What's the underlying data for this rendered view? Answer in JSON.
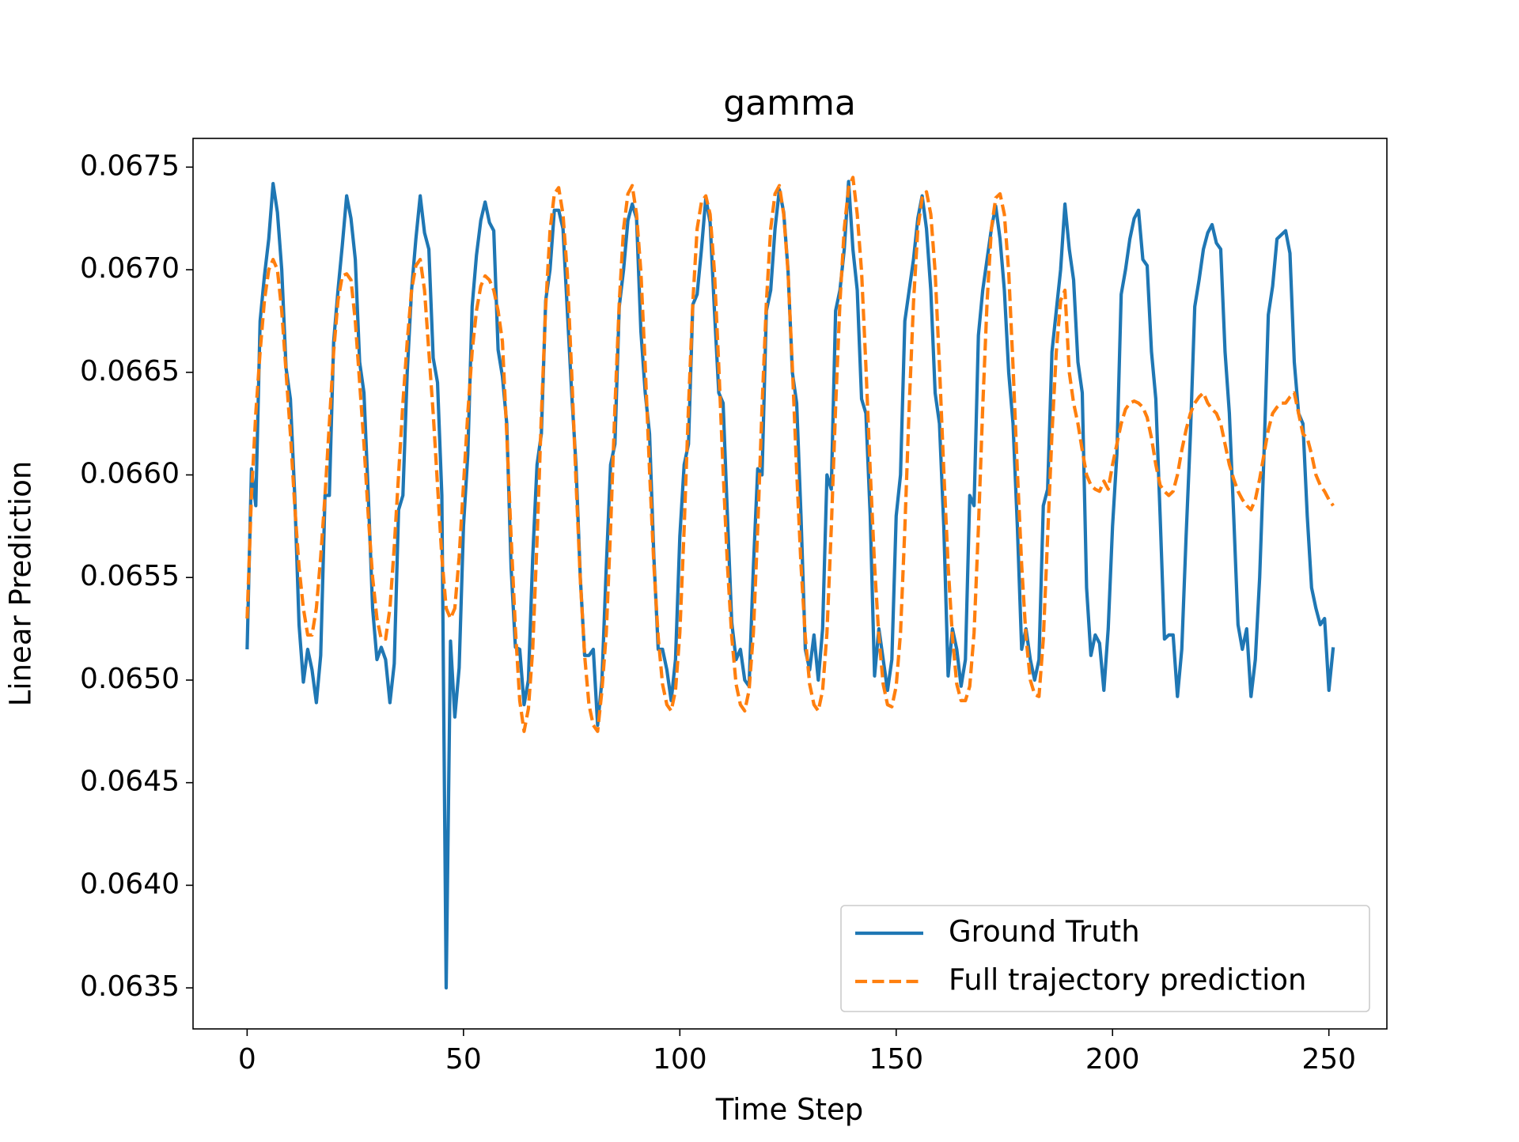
{
  "chart_data": {
    "type": "line",
    "title": "gamma",
    "x_label": "Time Step",
    "y_label": "Linear Prediction",
    "x": [
      0,
      1,
      2,
      3,
      4,
      5,
      6,
      7,
      8,
      9,
      10,
      11,
      12,
      13,
      14,
      15,
      16,
      17,
      18,
      19,
      20,
      21,
      22,
      23,
      24,
      25,
      26,
      27,
      28,
      29,
      30,
      31,
      32,
      33,
      34,
      35,
      36,
      37,
      38,
      39,
      40,
      41,
      42,
      43,
      44,
      45,
      46,
      47,
      48,
      49,
      50,
      51,
      52,
      53,
      54,
      55,
      56,
      57,
      58,
      59,
      60,
      61,
      62,
      63,
      64,
      65,
      66,
      67,
      68,
      69,
      70,
      71,
      72,
      73,
      74,
      75,
      76,
      77,
      78,
      79,
      80,
      81,
      82,
      83,
      84,
      85,
      86,
      87,
      88,
      89,
      90,
      91,
      92,
      93,
      94,
      95,
      96,
      97,
      98,
      99,
      100,
      101,
      102,
      103,
      104,
      105,
      106,
      107,
      108,
      109,
      110,
      111,
      112,
      113,
      114,
      115,
      116,
      117,
      118,
      119,
      120,
      121,
      122,
      123,
      124,
      125,
      126,
      127,
      128,
      129,
      130,
      131,
      132,
      133,
      134,
      135,
      136,
      137,
      138,
      139,
      140,
      141,
      142,
      143,
      144,
      145,
      146,
      147,
      148,
      149,
      150,
      151,
      152,
      153,
      154,
      155,
      156,
      157,
      158,
      159,
      160,
      161,
      162,
      163,
      164,
      165,
      166,
      167,
      168,
      169,
      170,
      171,
      172,
      173,
      174,
      175,
      176,
      177,
      178,
      179,
      180,
      181,
      182,
      183,
      184,
      185,
      186,
      187,
      188,
      189,
      190,
      191,
      192,
      193,
      194,
      195,
      196,
      197,
      198,
      199,
      200,
      201,
      202,
      203,
      204,
      205,
      206,
      207,
      208,
      209,
      210,
      211,
      212,
      213,
      214,
      215,
      216,
      217,
      218,
      219,
      220,
      221,
      222,
      223,
      224,
      225,
      226,
      227,
      228,
      229,
      230,
      231,
      232,
      233,
      234,
      235,
      236,
      237,
      238,
      239,
      240,
      241,
      242,
      243,
      244,
      245,
      246,
      247,
      248,
      249,
      250,
      251
    ],
    "series": [
      {
        "name": "Ground Truth",
        "color": "#1f77b4",
        "dashed": false,
        "values": [
          0.06515,
          0.06603,
          0.06585,
          0.06675,
          0.06697,
          0.06715,
          0.06742,
          0.06728,
          0.067,
          0.06652,
          0.06637,
          0.0659,
          0.06527,
          0.06499,
          0.06515,
          0.06505,
          0.06489,
          0.06512,
          0.0659,
          0.0659,
          0.06665,
          0.0669,
          0.06712,
          0.06736,
          0.06725,
          0.06705,
          0.06655,
          0.0664,
          0.0659,
          0.06535,
          0.0651,
          0.06516,
          0.0651,
          0.06489,
          0.06508,
          0.06583,
          0.0659,
          0.0665,
          0.0669,
          0.06715,
          0.06736,
          0.06718,
          0.0671,
          0.06657,
          0.06645,
          0.0659,
          0.0635,
          0.06519,
          0.06482,
          0.06506,
          0.06575,
          0.0661,
          0.06682,
          0.06707,
          0.06724,
          0.06733,
          0.06723,
          0.06719,
          0.06661,
          0.06648,
          0.06625,
          0.06555,
          0.06516,
          0.06515,
          0.06488,
          0.065,
          0.0656,
          0.06605,
          0.0662,
          0.06685,
          0.067,
          0.06729,
          0.06729,
          0.0672,
          0.0668,
          0.0664,
          0.06605,
          0.0655,
          0.06512,
          0.06512,
          0.06515,
          0.06478,
          0.065,
          0.06555,
          0.06605,
          0.06615,
          0.06682,
          0.067,
          0.06724,
          0.06732,
          0.06725,
          0.0667,
          0.0664,
          0.0662,
          0.0656,
          0.06515,
          0.06515,
          0.06505,
          0.0649,
          0.0651,
          0.0657,
          0.06605,
          0.06615,
          0.06683,
          0.06688,
          0.0671,
          0.06735,
          0.06723,
          0.0668,
          0.0664,
          0.06635,
          0.0658,
          0.06528,
          0.0651,
          0.06515,
          0.065,
          0.06497,
          0.06555,
          0.06603,
          0.066,
          0.0668,
          0.0669,
          0.0672,
          0.06739,
          0.06728,
          0.067,
          0.0665,
          0.06635,
          0.0658,
          0.06515,
          0.06505,
          0.06522,
          0.065,
          0.06525,
          0.066,
          0.06593,
          0.0668,
          0.0669,
          0.0671,
          0.06743,
          0.0671,
          0.0669,
          0.06637,
          0.0663,
          0.0658,
          0.06502,
          0.06525,
          0.0651,
          0.06495,
          0.0651,
          0.0658,
          0.066,
          0.06675,
          0.0669,
          0.06705,
          0.06725,
          0.06736,
          0.0672,
          0.0669,
          0.0664,
          0.06625,
          0.06575,
          0.06502,
          0.06525,
          0.06515,
          0.06497,
          0.0651,
          0.0659,
          0.06585,
          0.06668,
          0.0669,
          0.06705,
          0.0672,
          0.06731,
          0.06715,
          0.0669,
          0.0665,
          0.06625,
          0.06575,
          0.06515,
          0.06525,
          0.0651,
          0.065,
          0.0651,
          0.06585,
          0.06593,
          0.0666,
          0.0668,
          0.067,
          0.06732,
          0.0671,
          0.06695,
          0.06655,
          0.0664,
          0.06545,
          0.06512,
          0.06522,
          0.06518,
          0.06495,
          0.06525,
          0.06575,
          0.0661,
          0.06688,
          0.067,
          0.06715,
          0.06725,
          0.06729,
          0.06705,
          0.06702,
          0.0666,
          0.06637,
          0.0658,
          0.0652,
          0.06522,
          0.06522,
          0.06492,
          0.06515,
          0.0657,
          0.0662,
          0.06682,
          0.06695,
          0.0671,
          0.06718,
          0.06722,
          0.06713,
          0.0671,
          0.0666,
          0.0663,
          0.0658,
          0.06527,
          0.06515,
          0.06525,
          0.06492,
          0.0651,
          0.0655,
          0.0661,
          0.06678,
          0.06692,
          0.06715,
          0.06717,
          0.06719,
          0.06708,
          0.06655,
          0.0663,
          0.06625,
          0.0658,
          0.06545,
          0.06535,
          0.06527,
          0.0653,
          0.06495,
          0.06516
        ]
      },
      {
        "name": "Full trajectory prediction",
        "color": "#ff7f0e",
        "dashed": true,
        "values": [
          0.0653,
          0.0659,
          0.0663,
          0.0666,
          0.06685,
          0.067,
          0.06705,
          0.067,
          0.0668,
          0.0665,
          0.0662,
          0.06585,
          0.06555,
          0.06535,
          0.06522,
          0.06522,
          0.06535,
          0.0656,
          0.0659,
          0.06625,
          0.0666,
          0.06685,
          0.06697,
          0.06698,
          0.06695,
          0.06675,
          0.06645,
          0.06615,
          0.0658,
          0.0655,
          0.0653,
          0.0652,
          0.0652,
          0.06535,
          0.06565,
          0.066,
          0.06635,
          0.06665,
          0.0669,
          0.06702,
          0.06705,
          0.0669,
          0.0666,
          0.0663,
          0.06595,
          0.0656,
          0.06535,
          0.0653,
          0.06535,
          0.0656,
          0.06595,
          0.0663,
          0.0666,
          0.0668,
          0.06692,
          0.06697,
          0.06695,
          0.0669,
          0.0668,
          0.06665,
          0.0662,
          0.0657,
          0.06525,
          0.0649,
          0.06475,
          0.06486,
          0.06515,
          0.06568,
          0.06629,
          0.06682,
          0.06719,
          0.06737,
          0.0674,
          0.06727,
          0.06698,
          0.0665,
          0.06597,
          0.06549,
          0.06512,
          0.06488,
          0.06478,
          0.06475,
          0.06495,
          0.06523,
          0.06574,
          0.06633,
          0.06684,
          0.0672,
          0.06737,
          0.06741,
          0.06727,
          0.06699,
          0.06653,
          0.06602,
          0.06556,
          0.06521,
          0.06498,
          0.06488,
          0.06485,
          0.06495,
          0.06523,
          0.06574,
          0.06633,
          0.06684,
          0.0672,
          0.06733,
          0.06736,
          0.06727,
          0.06699,
          0.06653,
          0.06602,
          0.06556,
          0.06521,
          0.06498,
          0.06488,
          0.06485,
          0.06495,
          0.06523,
          0.06574,
          0.06633,
          0.06684,
          0.0672,
          0.06737,
          0.06741,
          0.06727,
          0.06699,
          0.06653,
          0.06602,
          0.06556,
          0.06521,
          0.06498,
          0.06488,
          0.06485,
          0.06495,
          0.06523,
          0.06574,
          0.06633,
          0.06684,
          0.0672,
          0.0674,
          0.06745,
          0.06727,
          0.06699,
          0.06653,
          0.06602,
          0.06556,
          0.06521,
          0.06498,
          0.06488,
          0.06487,
          0.06497,
          0.06523,
          0.06574,
          0.06633,
          0.06684,
          0.0672,
          0.06735,
          0.06738,
          0.06727,
          0.06699,
          0.06653,
          0.06602,
          0.06556,
          0.06521,
          0.06498,
          0.0649,
          0.0649,
          0.06497,
          0.06523,
          0.06574,
          0.06633,
          0.06684,
          0.0672,
          0.06735,
          0.06737,
          0.06727,
          0.06699,
          0.06653,
          0.06602,
          0.06556,
          0.06521,
          0.065,
          0.06493,
          0.06492,
          0.0652,
          0.0657,
          0.0662,
          0.0666,
          0.06685,
          0.0669,
          0.0665,
          0.06635,
          0.06625,
          0.06612,
          0.066,
          0.06595,
          0.06593,
          0.06592,
          0.06597,
          0.06593,
          0.06605,
          0.06615,
          0.06625,
          0.06632,
          0.06635,
          0.06636,
          0.06635,
          0.06633,
          0.06628,
          0.06618,
          0.06605,
          0.06595,
          0.06592,
          0.0659,
          0.06592,
          0.066,
          0.06612,
          0.06622,
          0.0663,
          0.06635,
          0.06638,
          0.0664,
          0.06635,
          0.06632,
          0.0663,
          0.06625,
          0.06615,
          0.06605,
          0.06598,
          0.06592,
          0.06588,
          0.06585,
          0.06583,
          0.06588,
          0.06598,
          0.0661,
          0.06622,
          0.0663,
          0.06633,
          0.06635,
          0.06635,
          0.06638,
          0.0664,
          0.0663,
          0.0662,
          0.06618,
          0.0661,
          0.066,
          0.06595,
          0.06592,
          0.06588,
          0.06585
        ]
      }
    ],
    "xlim": [
      -12.5,
      263.4
    ],
    "ylim": [
      0.0633,
      0.06764
    ],
    "xticks": [
      0,
      50,
      100,
      150,
      200,
      250
    ],
    "yticks": [
      0.0635,
      {
        "value": 0.064,
        "label": "0.0640"
      },
      0.0645,
      {
        "value": 0.065,
        "label": "0.0650"
      },
      0.0655,
      {
        "value": 0.066,
        "label": "0.0660"
      },
      0.0665,
      {
        "value": 0.067,
        "label": "0.0670"
      },
      0.0675
    ],
    "grid": false,
    "legend": "lower right"
  }
}
